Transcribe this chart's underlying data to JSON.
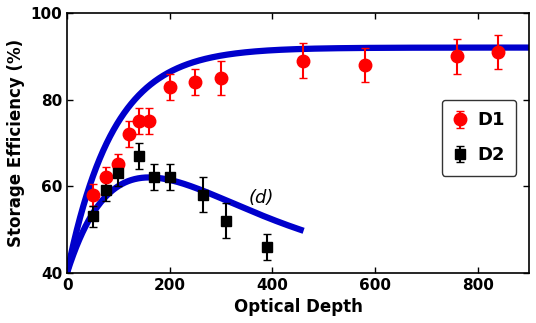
{
  "title": "",
  "xlabel": "Optical Depth",
  "ylabel": "Storage Efficiency (%)",
  "label_d": "(d)",
  "xlim": [
    0,
    900
  ],
  "ylim": [
    40,
    100
  ],
  "xticks": [
    0,
    200,
    400,
    600,
    800
  ],
  "yticks": [
    40,
    60,
    80,
    100
  ],
  "background_color": "#ffffff",
  "d1_x": [
    50,
    75,
    100,
    120,
    140,
    160,
    200,
    250,
    300,
    460,
    580,
    760,
    840
  ],
  "d1_y": [
    58,
    62,
    65,
    72,
    75,
    75,
    83,
    84,
    85,
    89,
    88,
    90,
    91
  ],
  "d1_yerr": [
    2.5,
    2.5,
    2.5,
    3,
    3,
    3,
    3,
    3,
    4,
    4,
    4,
    4,
    4
  ],
  "d2_x": [
    50,
    75,
    100,
    140,
    170,
    200,
    265,
    310,
    390
  ],
  "d2_y": [
    53,
    59,
    63,
    67,
    62,
    62,
    58,
    52,
    46
  ],
  "d2_yerr": [
    2.5,
    2.5,
    3,
    3,
    3,
    3,
    4,
    4,
    3
  ],
  "d1_color": "#ff0000",
  "d2_color": "#000000",
  "curve_color": "#0000cc",
  "curve_linewidth": 4.5,
  "marker_size_d1": 9,
  "marker_size_d2": 7,
  "legend_fontsize": 12,
  "tick_fontsize": 11,
  "axis_label_fontsize": 12,
  "d1_curve_params": {
    "A": 52,
    "tau": 90,
    "base": 40
  },
  "d2_curve_params": {
    "peak": 62,
    "x_peak": 160,
    "sigma": 120,
    "base": 40,
    "x_end": 450
  }
}
